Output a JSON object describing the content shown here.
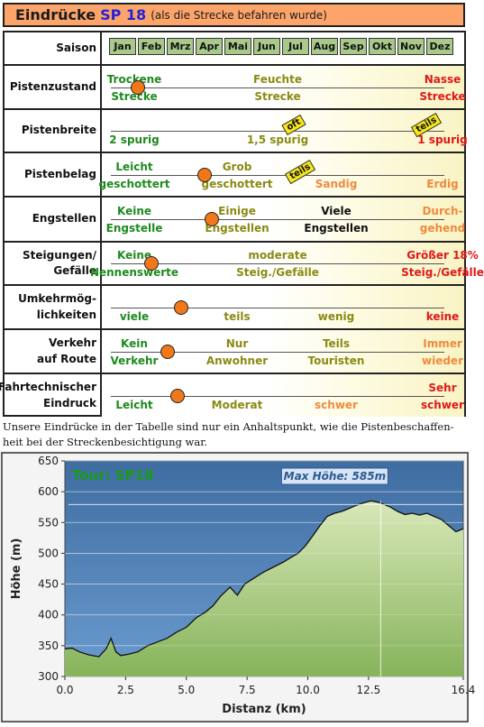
{
  "header": {
    "title": "Eindrücke",
    "track_id": "SP 18",
    "note": "(als die Strecke befahren wurde)"
  },
  "table": {
    "season": {
      "label": "Saison",
      "months": [
        "Jan",
        "Feb",
        "Mrz",
        "Apr",
        "Mai",
        "Jun",
        "Jul",
        "Aug",
        "Sep",
        "Okt",
        "Nov",
        "Dez"
      ]
    },
    "rows": [
      {
        "label": "Pistenzustand",
        "marker_pct": 0.08,
        "options": [
          {
            "top": "Trockene",
            "bottom": "Strecke",
            "color": "#1e8a1e"
          },
          {
            "top": "Feuchte",
            "bottom": "Strecke",
            "color": "#8a8a14"
          },
          {
            "top": "Nasse",
            "bottom": "Strecke",
            "color": "#e01818"
          }
        ]
      },
      {
        "label": "Pistenbreite",
        "flags": [
          "oft",
          "teils"
        ],
        "options": [
          {
            "top": "",
            "bottom": "2 spurig",
            "color": "#1e8a1e"
          },
          {
            "top": "",
            "bottom": "1,5 spurig",
            "color": "#8a8a14"
          },
          {
            "top": "",
            "bottom": "1 spurig",
            "color": "#e01818"
          }
        ]
      },
      {
        "label": "Pistenbelag",
        "marker_pct": 0.28,
        "flags": [
          "teils"
        ],
        "options": [
          {
            "top": "Leicht",
            "bottom": "geschottert",
            "color": "#1e8a1e"
          },
          {
            "top": "Grob",
            "bottom": "geschottert",
            "color": "#8a8a14"
          },
          {
            "top": "",
            "bottom": "Sandig",
            "color": "#f08a3c"
          },
          {
            "top": "",
            "bottom": "Erdig",
            "color": "#f08a3c"
          }
        ]
      },
      {
        "label": "Engstellen",
        "marker_pct": 0.3,
        "options": [
          {
            "top": "Keine",
            "bottom": "Engstelle",
            "color": "#1e8a1e"
          },
          {
            "top": "Einige",
            "bottom": "Engstellen",
            "color": "#8a8a14"
          },
          {
            "top": "Viele",
            "bottom": "Engstellen",
            "color": "#111111"
          },
          {
            "top": "Durch-",
            "bottom": "gehend",
            "color": "#f08a3c"
          }
        ]
      },
      {
        "label": "Steigungen/\nGefälle",
        "marker_pct": 0.12,
        "options": [
          {
            "top": "Keine",
            "bottom": "Nennenswerte",
            "color": "#1e8a1e"
          },
          {
            "top": "moderate",
            "bottom": "Steig./Gefälle",
            "color": "#8a8a14"
          },
          {
            "top": "Größer 18%",
            "bottom": "Steig./Gefälle",
            "color": "#e01818"
          }
        ]
      },
      {
        "label": "Umkehrmög-\nlichkeiten",
        "marker_pct": 0.21,
        "options": [
          {
            "top": "",
            "bottom": "viele",
            "color": "#1e8a1e"
          },
          {
            "top": "",
            "bottom": "teils",
            "color": "#8a8a14"
          },
          {
            "top": "",
            "bottom": "wenig",
            "color": "#8a8a14"
          },
          {
            "top": "",
            "bottom": "keine",
            "color": "#e01818"
          }
        ]
      },
      {
        "label": "Verkehr\nauf Route",
        "marker_pct": 0.17,
        "options": [
          {
            "top": "Kein",
            "bottom": "Verkehr",
            "color": "#1e8a1e"
          },
          {
            "top": "Nur",
            "bottom": "Anwohner",
            "color": "#8a8a14"
          },
          {
            "top": "Teils",
            "bottom": "Touristen",
            "color": "#8a8a14"
          },
          {
            "top": "Immer",
            "bottom": "wieder",
            "color": "#f08a3c"
          }
        ]
      },
      {
        "label": "Fahrtechnischer\nEindruck",
        "marker_pct": 0.2,
        "options": [
          {
            "top": "",
            "bottom": "Leicht",
            "color": "#1e8a1e"
          },
          {
            "top": "",
            "bottom": "Moderat",
            "color": "#8a8a14"
          },
          {
            "top": "",
            "bottom": "schwer",
            "color": "#f08a3c"
          },
          {
            "top": "Sehr",
            "bottom": "schwer",
            "color": "#e01818"
          }
        ]
      }
    ]
  },
  "note": "Unsere Eindrücke in der Tabelle sind nur ein Anhaltspunkt, wie die Pistenbeschaffen-heit bei der Streckenbesichtigung war.",
  "chart_data": {
    "type": "area",
    "title": "Tour: SP18",
    "annotation": "Max Höhe: 585m",
    "xlabel": "Distanz (km)",
    "ylabel": "Höhe (m)",
    "xlim": [
      0,
      16.4
    ],
    "ylim": [
      300,
      650
    ],
    "xticks": [
      "0.0",
      "2.5",
      "5.0",
      "7.5",
      "10.0",
      "12.5",
      "16.4"
    ],
    "xtick_values": [
      0,
      2.5,
      5.0,
      7.5,
      10.0,
      12.5,
      16.4
    ],
    "yticks": [
      "650",
      "600",
      "550",
      "500",
      "450",
      "400",
      "350",
      "300"
    ],
    "ytick_values": [
      650,
      600,
      550,
      500,
      450,
      400,
      350,
      300
    ],
    "max_marker_x": 13.0,
    "max_marker_y": 585,
    "colors": {
      "fill_top": "#d8e8b8",
      "fill_bottom": "#86b35a",
      "line": "#111111",
      "plot_bg_top": "#3f6da1",
      "plot_bg_bottom": "#6a9bce",
      "title": "#1a9a1a"
    },
    "x": [
      0,
      0.3,
      0.6,
      1.0,
      1.4,
      1.7,
      1.9,
      2.1,
      2.3,
      2.6,
      3.0,
      3.4,
      3.8,
      4.2,
      4.6,
      5.0,
      5.4,
      5.8,
      6.1,
      6.4,
      6.8,
      7.1,
      7.4,
      7.8,
      8.2,
      8.6,
      9.0,
      9.3,
      9.6,
      9.9,
      10.2,
      10.5,
      10.8,
      11.1,
      11.4,
      11.7,
      12.0,
      12.3,
      12.6,
      12.9,
      13.1,
      13.4,
      13.7,
      14.0,
      14.3,
      14.6,
      14.9,
      15.2,
      15.5,
      15.8,
      16.1,
      16.4
    ],
    "y": [
      345,
      346,
      340,
      335,
      332,
      345,
      362,
      340,
      334,
      336,
      340,
      350,
      356,
      362,
      372,
      380,
      395,
      405,
      415,
      430,
      445,
      432,
      450,
      460,
      470,
      478,
      486,
      493,
      500,
      512,
      528,
      545,
      560,
      565,
      568,
      573,
      578,
      582,
      585,
      583,
      580,
      575,
      568,
      563,
      565,
      562,
      565,
      560,
      555,
      545,
      535,
      540
    ]
  }
}
